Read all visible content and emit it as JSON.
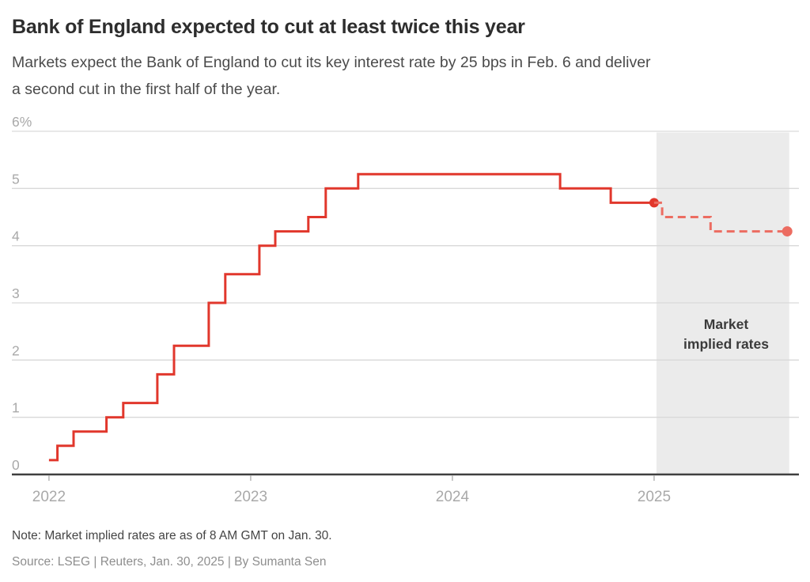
{
  "header": {
    "title": "Bank of England expected to cut at least twice this year",
    "subtitle_lines": [
      "Markets expect the Bank of England to cut its key interest rate by 25 bps in Feb. 6 and deliver",
      "a second cut in the first half of the year."
    ]
  },
  "chart_data": {
    "type": "line",
    "step": true,
    "title": "Bank of England expected to cut at least twice this year",
    "xlabel": "",
    "ylabel": "%",
    "xlim": [
      2021.816,
      2025.718
    ],
    "ylim": [
      0,
      6
    ],
    "grid": "horizontal",
    "legend": "none",
    "x_ticks": [
      {
        "value": 2022,
        "label": "2022"
      },
      {
        "value": 2023,
        "label": "2023"
      },
      {
        "value": 2024,
        "label": "2024"
      },
      {
        "value": 2025,
        "label": "2025"
      }
    ],
    "y_ticks": [
      {
        "value": 0,
        "label": "0"
      },
      {
        "value": 1,
        "label": "1"
      },
      {
        "value": 2,
        "label": "2"
      },
      {
        "value": 3,
        "label": "3"
      },
      {
        "value": 4,
        "label": "4"
      },
      {
        "value": 5,
        "label": "5"
      },
      {
        "value": 6,
        "label": "6%"
      }
    ],
    "series": [
      {
        "name": "Bank of England key interest rate",
        "style": "solid",
        "color": "#e1372c",
        "line_width": 3,
        "end_marker": true,
        "marker_radius": 6,
        "points": [
          [
            2022.0,
            0.25
          ],
          [
            2022.042,
            0.5
          ],
          [
            2022.122,
            0.75
          ],
          [
            2022.285,
            1.0
          ],
          [
            2022.368,
            1.25
          ],
          [
            2022.537,
            1.75
          ],
          [
            2022.62,
            2.25
          ],
          [
            2022.792,
            3.0
          ],
          [
            2022.874,
            3.5
          ],
          [
            2023.043,
            4.0
          ],
          [
            2023.122,
            4.25
          ],
          [
            2023.286,
            4.5
          ],
          [
            2023.372,
            5.0
          ],
          [
            2023.533,
            5.25
          ],
          [
            2024.534,
            5.0
          ],
          [
            2024.785,
            4.75
          ],
          [
            2025.0,
            4.75
          ]
        ]
      },
      {
        "name": "Market implied rates",
        "style": "dashed",
        "color": "#ec6c61",
        "line_width": 3,
        "dash": "10 6",
        "end_marker": true,
        "marker_radius": 6.5,
        "points": [
          [
            2025.0,
            4.75
          ],
          [
            2025.04,
            4.5
          ],
          [
            2025.28,
            4.25
          ],
          [
            2025.66,
            4.25
          ]
        ]
      }
    ],
    "shaded_region": {
      "x_start": 2025.012,
      "x_end": 2025.67,
      "color": "#ebebeb",
      "label": "Market implied rates"
    },
    "annotation_lines": [
      "Market",
      "implied rates"
    ]
  },
  "footer": {
    "note": "Note: Market implied rates are as of 8 AM GMT on Jan. 30.",
    "source": "Source: LSEG | Reuters, Jan. 30, 2025 | By Sumanta Sen"
  },
  "colors": {
    "title_text": "#2d2d2d",
    "subtitle_text": "#4b4b4b",
    "solid_line": "#e1372c",
    "dashed_line": "#ec6c61",
    "shade": "#ebebeb",
    "gridline": "#d9d9d9",
    "axis_line": "#3f3f3f",
    "tick_label": "#a9a9a9",
    "note_text": "#454545",
    "source_text": "#8e8e8e",
    "annotation_text": "#3b3b3b"
  }
}
